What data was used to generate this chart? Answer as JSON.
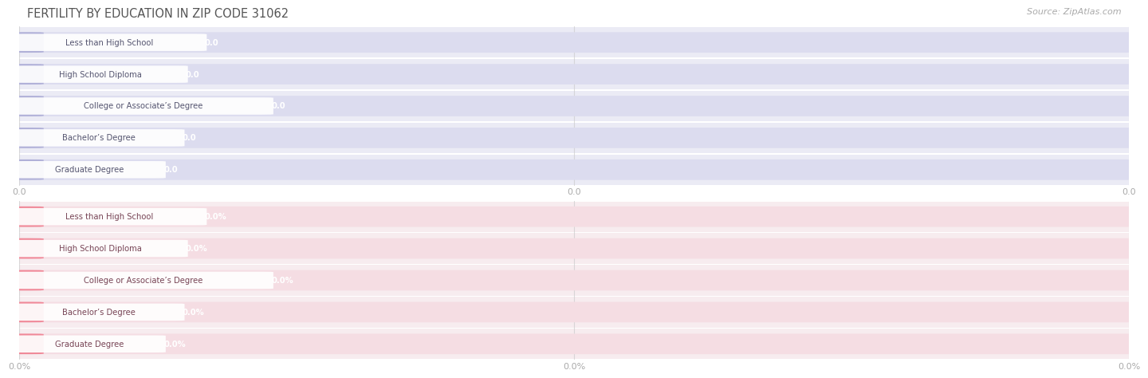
{
  "title": "FERTILITY BY EDUCATION IN ZIP CODE 31062",
  "source": "Source: ZipAtlas.com",
  "categories": [
    "Less than High School",
    "High School Diploma",
    "College or Associate’s Degree",
    "Bachelor’s Degree",
    "Graduate Degree"
  ],
  "values_top": [
    0.0,
    0.0,
    0.0,
    0.0,
    0.0
  ],
  "values_bottom": [
    0.0,
    0.0,
    0.0,
    0.0,
    0.0
  ],
  "bar_color_top": "#b0b0d8",
  "bar_color_bottom": "#f08898",
  "bar_bg_color_top": "#dcdcef",
  "bar_bg_color_bottom": "#f5dde3",
  "label_pill_color": "#ffffff",
  "label_color_top": "#555570",
  "label_color_bottom": "#774455",
  "value_color_top": "#ffffff",
  "value_color_bottom": "#ffffff",
  "tick_color": "#aaaaaa",
  "title_color": "#555555",
  "source_color": "#aaaaaa",
  "background_color": "#ffffff",
  "row_bg_top": "#ebebf5",
  "row_bg_bottom": "#f7ecef",
  "grid_color": "#cccccc",
  "xtick_labels_top": [
    "0.0",
    "0.0",
    "0.0"
  ],
  "xtick_labels_bottom": [
    "0.0%",
    "0.0%",
    "0.0%"
  ],
  "bar_height": 0.62,
  "figsize": [
    14.06,
    4.75
  ],
  "dpi": 100,
  "label_widths": {
    "Less than High School": 0.155,
    "High School Diploma": 0.138,
    "College or Associate’s Degree": 0.215,
    "Bachelor’s Degree": 0.135,
    "Graduate Degree": 0.118
  }
}
